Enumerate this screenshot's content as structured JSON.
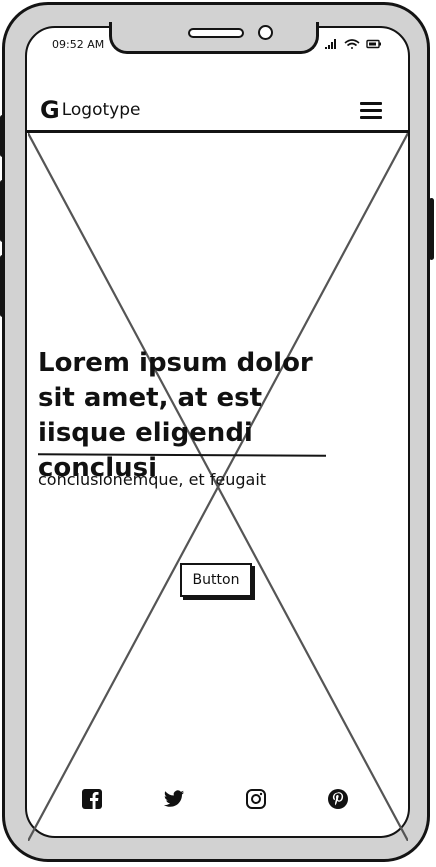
{
  "status_bar": {
    "time": "09:52 AM"
  },
  "header": {
    "logo_letter": "G",
    "logo_text": "Logotype",
    "menu_icon": "hamburger-icon"
  },
  "hero": {
    "title": "Lorem ipsum dolor sit amet, at est iisque eligendi conclusi",
    "subtitle": "conclusionemque, et feugait",
    "button_label": "Button"
  },
  "social": [
    "facebook-icon",
    "twitter-icon",
    "instagram-icon",
    "pinterest-icon"
  ]
}
